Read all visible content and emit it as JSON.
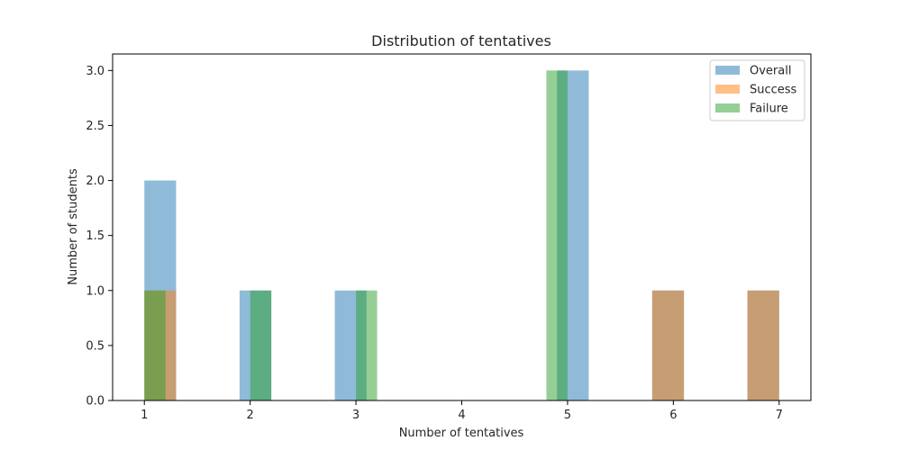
{
  "chart_data": {
    "type": "bar",
    "title": "Distribution of tentatives",
    "xlabel": "Number of tentatives",
    "ylabel": "Number of students",
    "xlim": [
      0.7,
      7.3
    ],
    "ylim": [
      0,
      3.15
    ],
    "x_ticks": [
      1,
      2,
      3,
      4,
      5,
      6,
      7
    ],
    "y_ticks": [
      "0.0",
      "0.5",
      "1.0",
      "1.5",
      "2.0",
      "2.5",
      "3.0"
    ],
    "grid": false,
    "legend": "top-right",
    "series": [
      {
        "name": "Overall",
        "color": "#1f77b4",
        "bars": [
          {
            "x0": 1.0,
            "x1": 1.3,
            "value": 2
          },
          {
            "x0": 1.9,
            "x1": 2.2,
            "value": 1
          },
          {
            "x0": 2.8,
            "x1": 3.1,
            "value": 1
          },
          {
            "x0": 4.9,
            "x1": 5.2,
            "value": 3
          },
          {
            "x0": 5.8,
            "x1": 6.1,
            "value": 1
          },
          {
            "x0": 6.7,
            "x1": 7.0,
            "value": 1
          }
        ]
      },
      {
        "name": "Success",
        "color": "#ff7f0e",
        "bars": [
          {
            "x0": 1.0,
            "x1": 1.3,
            "value": 1
          },
          {
            "x0": 5.8,
            "x1": 6.1,
            "value": 1
          },
          {
            "x0": 6.7,
            "x1": 7.0,
            "value": 1
          }
        ]
      },
      {
        "name": "Failure",
        "color": "#2ca02c",
        "bars": [
          {
            "x0": 1.0,
            "x1": 1.2,
            "value": 1
          },
          {
            "x0": 2.0,
            "x1": 2.2,
            "value": 1
          },
          {
            "x0": 3.0,
            "x1": 3.2,
            "value": 1
          },
          {
            "x0": 4.8,
            "x1": 5.0,
            "value": 3
          }
        ]
      }
    ]
  }
}
